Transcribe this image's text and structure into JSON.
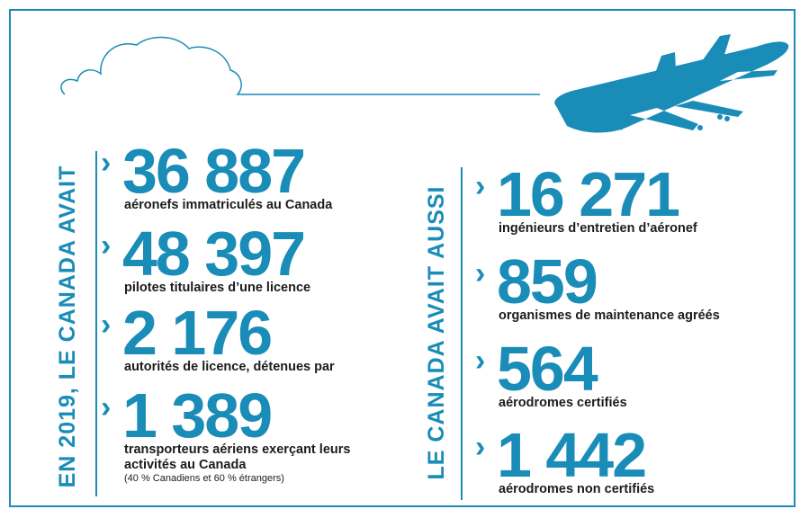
{
  "left": {
    "heading": "EN 2019, LE CANADA AVAIT",
    "items": [
      {
        "number": "36 887",
        "label": "aéronefs immatriculés au Canada"
      },
      {
        "number": "48 397",
        "label": "pilotes titulaires d’une licence"
      },
      {
        "number": "2 176",
        "label": "autorités de licence, détenues par"
      },
      {
        "number": "1 389",
        "label": "transporteurs aériens exerçant leurs activités au Canada",
        "note": "(40 % Canadiens et 60 % étrangers)"
      }
    ]
  },
  "right": {
    "heading": "LE CANADA AVAIT AUSSI",
    "items": [
      {
        "number": "16 271",
        "label": "ingénieurs d’entretien d’aéronef"
      },
      {
        "number": "859",
        "label": "organismes de maintenance agréés"
      },
      {
        "number": "564",
        "label": "aérodromes certifiés"
      },
      {
        "number": "1 442",
        "label": "aérodromes non certifiés"
      }
    ]
  }
}
